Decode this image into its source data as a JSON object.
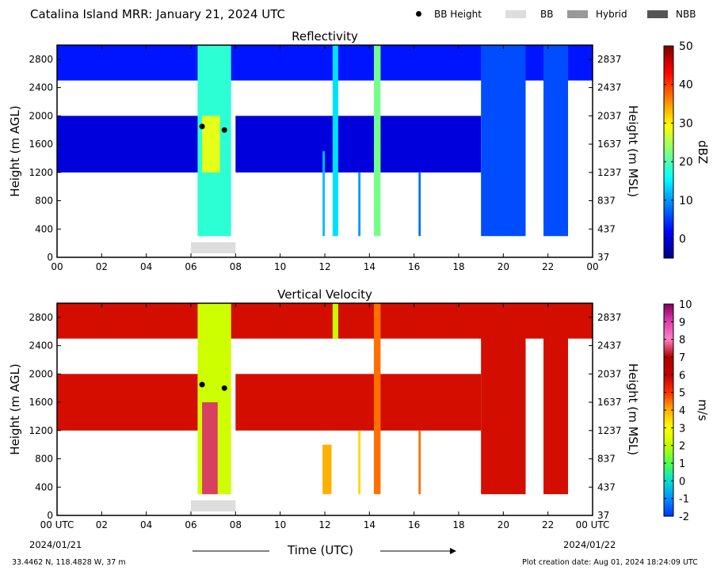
{
  "header": {
    "title": "Catalina Island MRR:  January 21, 2024 UTC",
    "legend": [
      {
        "label": "BB Height",
        "type": "dot",
        "color": "#000000"
      },
      {
        "label": "BB",
        "type": "box",
        "color": "#dddddd"
      },
      {
        "label": "Hybrid",
        "type": "box",
        "color": "#999999"
      },
      {
        "label": "NBB",
        "type": "box",
        "color": "#555555"
      }
    ]
  },
  "footer": {
    "location": "33.4462 N, 118.4828 W, 37 m",
    "created": "Plot creation date: Aug 01, 2024 18:24:09 UTC",
    "xlabel": "Time (UTC)",
    "start_date": "2024/01/21",
    "end_date": "2024/01/22"
  },
  "chart_data": [
    {
      "type": "heatmap",
      "title": "Reflectivity",
      "ylabel": "Height (m AGL)",
      "ylabel_right": "Height (m MSL)",
      "xlim": [
        0,
        24
      ],
      "ylim": [
        0,
        3000
      ],
      "x_ticks": [
        "00",
        "02",
        "04",
        "06",
        "08",
        "10",
        "12",
        "14",
        "16",
        "18",
        "20",
        "22",
        "00"
      ],
      "y_ticks": [
        0,
        400,
        800,
        1200,
        1600,
        2000,
        2400,
        2800
      ],
      "y_ticks_right": [
        37,
        437,
        837,
        1237,
        1637,
        2037,
        2437,
        2837
      ],
      "colorbar": {
        "label": "dBZ",
        "range": [
          -5,
          50
        ],
        "ticks": [
          0,
          10,
          20,
          30,
          40,
          50
        ],
        "colors": [
          "#00007f",
          "#0000ff",
          "#007fff",
          "#00ffff",
          "#7fff7f",
          "#ffff00",
          "#ff7f00",
          "#ff0000",
          "#7f0000"
        ]
      },
      "bb_height_points": [
        {
          "x": 6.5,
          "y": 1850
        },
        {
          "x": 7.5,
          "y": 1800
        }
      ],
      "bb_segments": [
        {
          "type": "BB",
          "x": [
            6.0,
            8.0
          ]
        }
      ],
      "field_regions": [
        {
          "x": [
            0,
            24
          ],
          "y": [
            2500,
            3000
          ],
          "dbz": 3
        },
        {
          "x": [
            0,
            6.5
          ],
          "y": [
            1200,
            2000
          ],
          "dbz": 0
        },
        {
          "x": [
            8.0,
            19.0
          ],
          "y": [
            1200,
            2000
          ],
          "dbz": 0
        },
        {
          "x": [
            6.3,
            7.8
          ],
          "y": [
            300,
            3000
          ],
          "dbz": 18
        },
        {
          "x": [
            6.5,
            7.3
          ],
          "y": [
            1200,
            2000
          ],
          "dbz": 28
        },
        {
          "x": [
            11.9,
            12.0
          ],
          "y": [
            300,
            1500
          ],
          "dbz": 12
        },
        {
          "x": [
            12.35,
            12.6
          ],
          "y": [
            300,
            3000
          ],
          "dbz": 14
        },
        {
          "x": [
            13.5,
            13.6
          ],
          "y": [
            300,
            1200
          ],
          "dbz": 10
        },
        {
          "x": [
            14.2,
            14.5
          ],
          "y": [
            300,
            3000
          ],
          "dbz": 22
        },
        {
          "x": [
            16.2,
            16.3
          ],
          "y": [
            300,
            1200
          ],
          "dbz": 8
        },
        {
          "x": [
            19.0,
            21.0
          ],
          "y": [
            300,
            3000
          ],
          "dbz": 6
        },
        {
          "x": [
            21.8,
            22.9
          ],
          "y": [
            300,
            3000
          ],
          "dbz": 6
        }
      ]
    },
    {
      "type": "heatmap",
      "title": "Vertical Velocity",
      "ylabel": "Height (m AGL)",
      "ylabel_right": "Height (m MSL)",
      "xlim": [
        0,
        24
      ],
      "ylim": [
        0,
        3000
      ],
      "x_ticks": [
        "00 UTC",
        "02",
        "04",
        "06",
        "08",
        "10",
        "12",
        "14",
        "16",
        "18",
        "20",
        "22",
        "00 UTC"
      ],
      "y_ticks": [
        0,
        400,
        800,
        1200,
        1600,
        2000,
        2400,
        2800
      ],
      "y_ticks_right": [
        37,
        437,
        837,
        1237,
        1637,
        2037,
        2437,
        2837
      ],
      "colorbar": {
        "label": "m/s",
        "range": [
          -2,
          10
        ],
        "ticks": [
          -2,
          -1,
          0,
          1,
          2,
          3,
          4,
          5,
          6,
          7,
          8,
          9,
          10
        ],
        "colors": [
          "#0030ff",
          "#0090ff",
          "#00e0d0",
          "#50ff50",
          "#c0ff00",
          "#ffff00",
          "#ffb000",
          "#ff3000",
          "#c00000",
          "#b00000",
          "#ff80c0",
          "#e040b0",
          "#800060"
        ]
      },
      "bb_height_points": [
        {
          "x": 6.5,
          "y": 1850
        },
        {
          "x": 7.5,
          "y": 1800
        }
      ],
      "bb_segments": [
        {
          "type": "BB",
          "x": [
            6.0,
            8.0
          ]
        }
      ],
      "field_regions": [
        {
          "x": [
            0,
            24
          ],
          "y": [
            2500,
            3000
          ],
          "ms": 5.7
        },
        {
          "x": [
            0,
            6.5
          ],
          "y": [
            1200,
            2000
          ],
          "ms": 5.7
        },
        {
          "x": [
            8.0,
            19.0
          ],
          "y": [
            1200,
            2000
          ],
          "ms": 5.7
        },
        {
          "x": [
            6.3,
            7.8
          ],
          "y": [
            300,
            3000
          ],
          "ms": 2.2
        },
        {
          "x": [
            6.5,
            7.2
          ],
          "y": [
            300,
            1600
          ],
          "ms": 7.5
        },
        {
          "x": [
            11.9,
            12.3
          ],
          "y": [
            300,
            1000
          ],
          "ms": 4.0
        },
        {
          "x": [
            12.35,
            12.6
          ],
          "y": [
            2500,
            3000
          ],
          "ms": 2.0
        },
        {
          "x": [
            13.5,
            13.6
          ],
          "y": [
            300,
            1200
          ],
          "ms": 3.5
        },
        {
          "x": [
            14.2,
            14.5
          ],
          "y": [
            300,
            3000
          ],
          "ms": 4.5
        },
        {
          "x": [
            16.2,
            16.3
          ],
          "y": [
            300,
            1200
          ],
          "ms": 4.5
        },
        {
          "x": [
            19.0,
            21.0
          ],
          "y": [
            300,
            3000
          ],
          "ms": 5.7
        },
        {
          "x": [
            21.8,
            22.9
          ],
          "y": [
            300,
            3000
          ],
          "ms": 5.7
        }
      ]
    }
  ]
}
